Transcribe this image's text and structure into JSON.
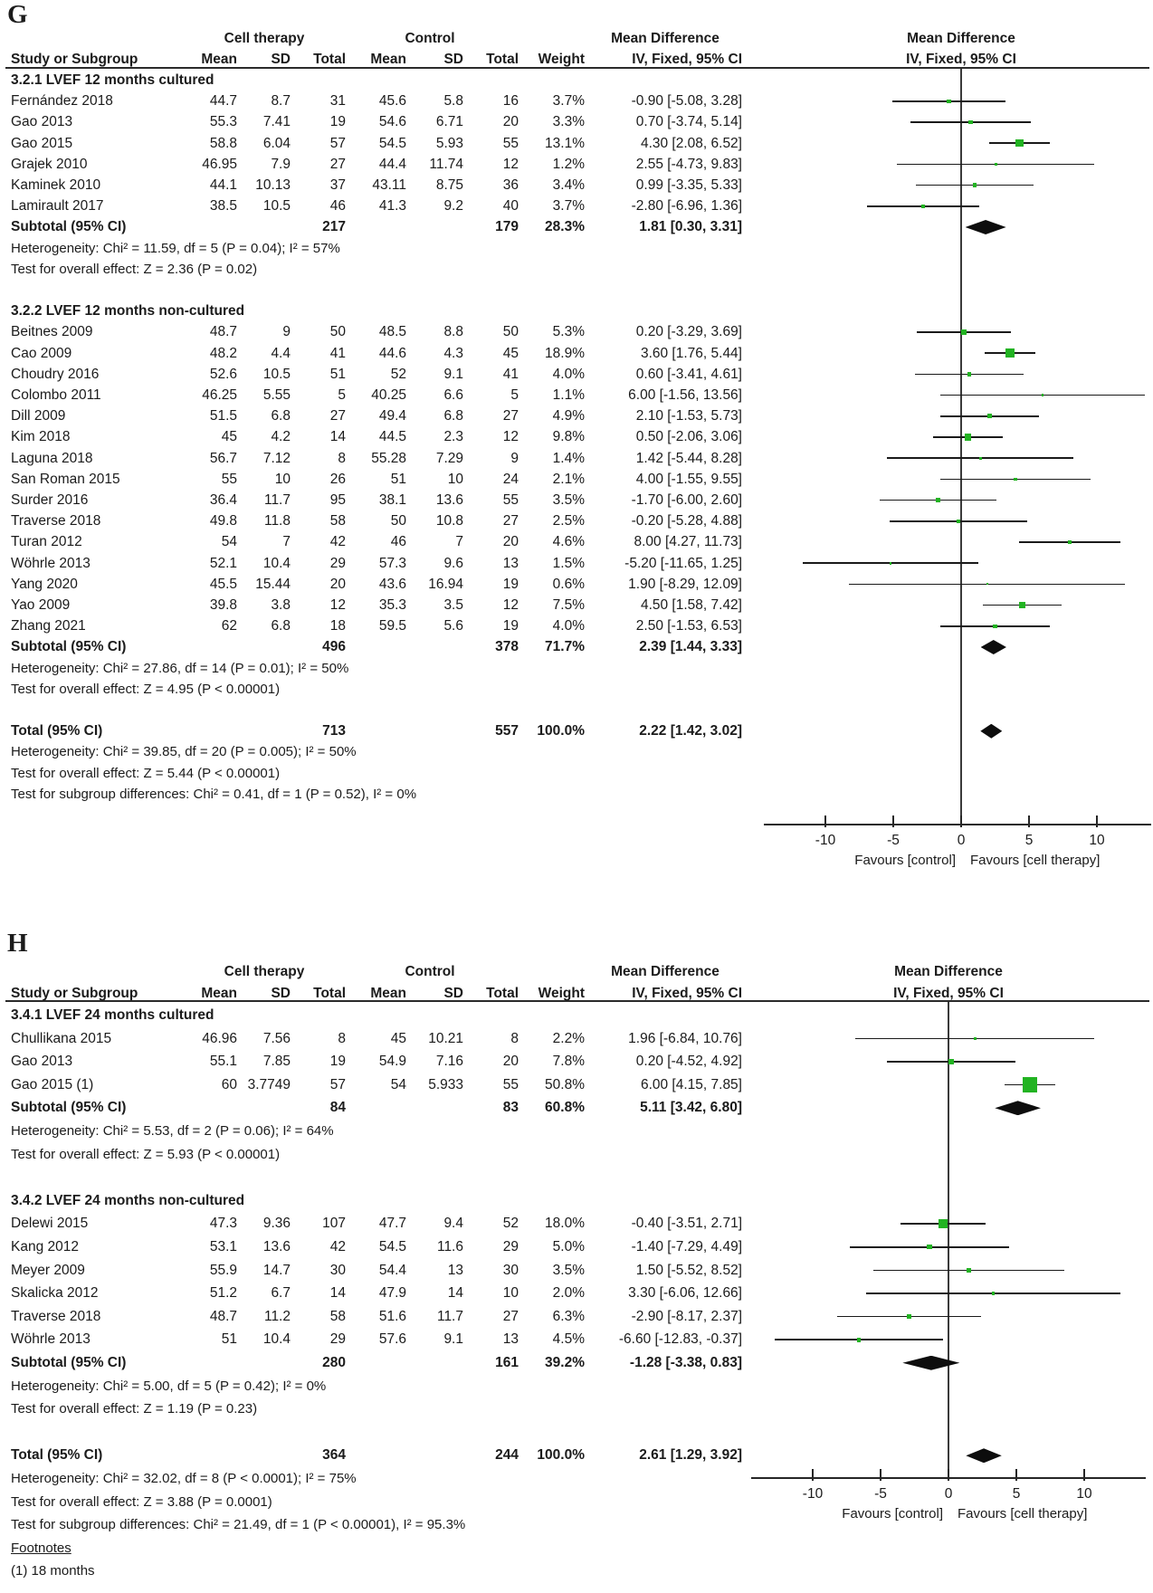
{
  "figure": {
    "marker_color": "#22b322",
    "diamond_color": "#0d0d0d",
    "line_color": "#1a1a1a"
  },
  "chart_data": [
    {
      "type": "forest",
      "panel_label": "G",
      "col_headers": {
        "study": "Study or Subgroup",
        "group1": "Cell therapy",
        "group2": "Control",
        "mean": "Mean",
        "sd": "SD",
        "total": "Total",
        "weight": "Weight",
        "effect": "Mean Difference",
        "method": "IV, Fixed, 95% CI"
      },
      "axis": {
        "ticks": [
          -10,
          -5,
          0,
          5,
          10
        ],
        "favours_left": "Favours [control]",
        "favours_right": "Favours [cell therapy]"
      },
      "rows": [
        {
          "kind": "section",
          "text": "3.2.1 LVEF 12 months cultured"
        },
        {
          "kind": "study",
          "study": "Fernández 2018",
          "mean1": "44.7",
          "sd1": "8.7",
          "total1": "31",
          "mean2": "45.6",
          "sd2": "5.8",
          "total2": "16",
          "weight": "3.7%",
          "ci_text": "-0.90 [-5.08, 3.28]"
        },
        {
          "kind": "study",
          "study": "Gao 2013",
          "mean1": "55.3",
          "sd1": "7.41",
          "total1": "19",
          "mean2": "54.6",
          "sd2": "6.71",
          "total2": "20",
          "weight": "3.3%",
          "ci_text": "0.70 [-3.74, 5.14]"
        },
        {
          "kind": "study",
          "study": "Gao 2015",
          "mean1": "58.8",
          "sd1": "6.04",
          "total1": "57",
          "mean2": "54.5",
          "sd2": "5.93",
          "total2": "55",
          "weight": "13.1%",
          "ci_text": "4.30 [2.08, 6.52]"
        },
        {
          "kind": "study",
          "study": "Grajek 2010",
          "mean1": "46.95",
          "sd1": "7.9",
          "total1": "27",
          "mean2": "44.4",
          "sd2": "11.74",
          "total2": "12",
          "weight": "1.2%",
          "ci_text": "2.55 [-4.73, 9.83]"
        },
        {
          "kind": "study",
          "study": "Kaminek 2010",
          "mean1": "44.1",
          "sd1": "10.13",
          "total1": "37",
          "mean2": "43.11",
          "sd2": "8.75",
          "total2": "36",
          "weight": "3.4%",
          "ci_text": "0.99 [-3.35, 5.33]"
        },
        {
          "kind": "study",
          "study": "Lamirault 2017",
          "mean1": "38.5",
          "sd1": "10.5",
          "total1": "46",
          "mean2": "41.3",
          "sd2": "9.2",
          "total2": "40",
          "weight": "3.7%",
          "ci_text": "-2.80 [-6.96, 1.36]"
        },
        {
          "kind": "subtotal",
          "study": "Subtotal (95% CI)",
          "total1": "217",
          "total2": "179",
          "weight": "28.3%",
          "ci_text": "1.81 [0.30, 3.31]"
        },
        {
          "kind": "text",
          "text": "Heterogeneity: Chi² = 11.59, df = 5 (P = 0.04); I² = 57%"
        },
        {
          "kind": "text",
          "text": "Test for overall effect: Z = 2.36 (P = 0.02)"
        },
        {
          "kind": "blank"
        },
        {
          "kind": "section",
          "text": "3.2.2 LVEF 12 months non-cultured"
        },
        {
          "kind": "study",
          "study": "Beitnes 2009",
          "mean1": "48.7",
          "sd1": "9",
          "total1": "50",
          "mean2": "48.5",
          "sd2": "8.8",
          "total2": "50",
          "weight": "5.3%",
          "ci_text": "0.20 [-3.29, 3.69]"
        },
        {
          "kind": "study",
          "study": "Cao 2009",
          "mean1": "48.2",
          "sd1": "4.4",
          "total1": "41",
          "mean2": "44.6",
          "sd2": "4.3",
          "total2": "45",
          "weight": "18.9%",
          "ci_text": "3.60 [1.76, 5.44]"
        },
        {
          "kind": "study",
          "study": "Choudry 2016",
          "mean1": "52.6",
          "sd1": "10.5",
          "total1": "51",
          "mean2": "52",
          "sd2": "9.1",
          "total2": "41",
          "weight": "4.0%",
          "ci_text": "0.60 [-3.41, 4.61]"
        },
        {
          "kind": "study",
          "study": "Colombo 2011",
          "mean1": "46.25",
          "sd1": "5.55",
          "total1": "5",
          "mean2": "40.25",
          "sd2": "6.6",
          "total2": "5",
          "weight": "1.1%",
          "ci_text": "6.00 [-1.56, 13.56]"
        },
        {
          "kind": "study",
          "study": "Dill 2009",
          "mean1": "51.5",
          "sd1": "6.8",
          "total1": "27",
          "mean2": "49.4",
          "sd2": "6.8",
          "total2": "27",
          "weight": "4.9%",
          "ci_text": "2.10 [-1.53, 5.73]"
        },
        {
          "kind": "study",
          "study": "Kim 2018",
          "mean1": "45",
          "sd1": "4.2",
          "total1": "14",
          "mean2": "44.5",
          "sd2": "2.3",
          "total2": "12",
          "weight": "9.8%",
          "ci_text": "0.50 [-2.06, 3.06]"
        },
        {
          "kind": "study",
          "study": "Laguna 2018",
          "mean1": "56.7",
          "sd1": "7.12",
          "total1": "8",
          "mean2": "55.28",
          "sd2": "7.29",
          "total2": "9",
          "weight": "1.4%",
          "ci_text": "1.42 [-5.44, 8.28]"
        },
        {
          "kind": "study",
          "study": "San Roman 2015",
          "mean1": "55",
          "sd1": "10",
          "total1": "26",
          "mean2": "51",
          "sd2": "10",
          "total2": "24",
          "weight": "2.1%",
          "ci_text": "4.00 [-1.55, 9.55]"
        },
        {
          "kind": "study",
          "study": "Surder 2016",
          "mean1": "36.4",
          "sd1": "11.7",
          "total1": "95",
          "mean2": "38.1",
          "sd2": "13.6",
          "total2": "55",
          "weight": "3.5%",
          "ci_text": "-1.70 [-6.00, 2.60]"
        },
        {
          "kind": "study",
          "study": "Traverse 2018",
          "mean1": "49.8",
          "sd1": "11.8",
          "total1": "58",
          "mean2": "50",
          "sd2": "10.8",
          "total2": "27",
          "weight": "2.5%",
          "ci_text": "-0.20 [-5.28, 4.88]"
        },
        {
          "kind": "study",
          "study": "Turan 2012",
          "mean1": "54",
          "sd1": "7",
          "total1": "42",
          "mean2": "46",
          "sd2": "7",
          "total2": "20",
          "weight": "4.6%",
          "ci_text": "8.00 [4.27, 11.73]"
        },
        {
          "kind": "study",
          "study": "Wöhrle 2013",
          "mean1": "52.1",
          "sd1": "10.4",
          "total1": "29",
          "mean2": "57.3",
          "sd2": "9.6",
          "total2": "13",
          "weight": "1.5%",
          "ci_text": "-5.20 [-11.65, 1.25]"
        },
        {
          "kind": "study",
          "study": "Yang 2020",
          "mean1": "45.5",
          "sd1": "15.44",
          "total1": "20",
          "mean2": "43.6",
          "sd2": "16.94",
          "total2": "19",
          "weight": "0.6%",
          "ci_text": "1.90 [-8.29, 12.09]"
        },
        {
          "kind": "study",
          "study": "Yao 2009",
          "mean1": "39.8",
          "sd1": "3.8",
          "total1": "12",
          "mean2": "35.3",
          "sd2": "3.5",
          "total2": "12",
          "weight": "7.5%",
          "ci_text": "4.50 [1.58, 7.42]"
        },
        {
          "kind": "study",
          "study": "Zhang 2021",
          "mean1": "62",
          "sd1": "6.8",
          "total1": "18",
          "mean2": "59.5",
          "sd2": "5.6",
          "total2": "19",
          "weight": "4.0%",
          "ci_text": "2.50 [-1.53, 6.53]"
        },
        {
          "kind": "subtotal",
          "study": "Subtotal (95% CI)",
          "total1": "496",
          "total2": "378",
          "weight": "71.7%",
          "ci_text": "2.39 [1.44, 3.33]"
        },
        {
          "kind": "text",
          "text": "Heterogeneity: Chi² = 27.86, df = 14 (P = 0.01); I² = 50%"
        },
        {
          "kind": "text",
          "text": "Test for overall effect: Z = 4.95 (P < 0.00001)"
        },
        {
          "kind": "blank"
        },
        {
          "kind": "total",
          "study": "Total (95% CI)",
          "total1": "713",
          "total2": "557",
          "weight": "100.0%",
          "ci_text": "2.22 [1.42, 3.02]"
        },
        {
          "kind": "text",
          "text": "Heterogeneity: Chi² = 39.85, df = 20 (P = 0.005); I² = 50%"
        },
        {
          "kind": "text",
          "text": "Test for overall effect: Z = 5.44 (P < 0.00001)"
        },
        {
          "kind": "text",
          "text": "Test for subgroup differences: Chi² = 0.41, df = 1 (P = 0.52), I² = 0%"
        }
      ]
    },
    {
      "type": "forest",
      "panel_label": "H",
      "col_headers": {
        "study": "Study or Subgroup",
        "group1": "Cell therapy",
        "group2": "Control",
        "mean": "Mean",
        "sd": "SD",
        "total": "Total",
        "weight": "Weight",
        "effect": "Mean Difference",
        "method": "IV, Fixed, 95% CI"
      },
      "axis": {
        "ticks": [
          -10,
          -5,
          0,
          5,
          10
        ],
        "favours_left": "Favours [control]",
        "favours_right": "Favours [cell therapy]"
      },
      "rows": [
        {
          "kind": "section",
          "text": "3.4.1 LVEF 24 months cultured"
        },
        {
          "kind": "study",
          "study": "Chullikana 2015",
          "mean1": "46.96",
          "sd1": "7.56",
          "total1": "8",
          "mean2": "45",
          "sd2": "10.21",
          "total2": "8",
          "weight": "2.2%",
          "ci_text": "1.96 [-6.84, 10.76]"
        },
        {
          "kind": "study",
          "study": "Gao 2013",
          "mean1": "55.1",
          "sd1": "7.85",
          "total1": "19",
          "mean2": "54.9",
          "sd2": "7.16",
          "total2": "20",
          "weight": "7.8%",
          "ci_text": "0.20 [-4.52, 4.92]"
        },
        {
          "kind": "study",
          "study": "Gao 2015 (1)",
          "mean1": "60",
          "sd1": "3.7749",
          "total1": "57",
          "mean2": "54",
          "sd2": "5.933",
          "total2": "55",
          "weight": "50.8%",
          "ci_text": "6.00 [4.15, 7.85]"
        },
        {
          "kind": "subtotal",
          "study": "Subtotal (95% CI)",
          "total1": "84",
          "total2": "83",
          "weight": "60.8%",
          "ci_text": "5.11 [3.42, 6.80]"
        },
        {
          "kind": "text",
          "text": "Heterogeneity: Chi² = 5.53, df = 2 (P = 0.06); I² = 64%"
        },
        {
          "kind": "text",
          "text": "Test for overall effect: Z = 5.93 (P < 0.00001)"
        },
        {
          "kind": "blank"
        },
        {
          "kind": "section",
          "text": "3.4.2 LVEF 24 months non-cultured"
        },
        {
          "kind": "study",
          "study": "Delewi 2015",
          "mean1": "47.3",
          "sd1": "9.36",
          "total1": "107",
          "mean2": "47.7",
          "sd2": "9.4",
          "total2": "52",
          "weight": "18.0%",
          "ci_text": "-0.40 [-3.51, 2.71]"
        },
        {
          "kind": "study",
          "study": "Kang 2012",
          "mean1": "53.1",
          "sd1": "13.6",
          "total1": "42",
          "mean2": "54.5",
          "sd2": "11.6",
          "total2": "29",
          "weight": "5.0%",
          "ci_text": "-1.40 [-7.29, 4.49]"
        },
        {
          "kind": "study",
          "study": "Meyer 2009",
          "mean1": "55.9",
          "sd1": "14.7",
          "total1": "30",
          "mean2": "54.4",
          "sd2": "13",
          "total2": "30",
          "weight": "3.5%",
          "ci_text": "1.50 [-5.52, 8.52]"
        },
        {
          "kind": "study",
          "study": "Skalicka 2012",
          "mean1": "51.2",
          "sd1": "6.7",
          "total1": "14",
          "mean2": "47.9",
          "sd2": "14",
          "total2": "10",
          "weight": "2.0%",
          "ci_text": "3.30 [-6.06, 12.66]"
        },
        {
          "kind": "study",
          "study": "Traverse 2018",
          "mean1": "48.7",
          "sd1": "11.2",
          "total1": "58",
          "mean2": "51.6",
          "sd2": "11.7",
          "total2": "27",
          "weight": "6.3%",
          "ci_text": "-2.90 [-8.17, 2.37]"
        },
        {
          "kind": "study",
          "study": "Wöhrle 2013",
          "mean1": "51",
          "sd1": "10.4",
          "total1": "29",
          "mean2": "57.6",
          "sd2": "9.1",
          "total2": "13",
          "weight": "4.5%",
          "ci_text": "-6.60 [-12.83, -0.37]"
        },
        {
          "kind": "subtotal",
          "study": "Subtotal (95% CI)",
          "total1": "280",
          "total2": "161",
          "weight": "39.2%",
          "ci_text": "-1.28 [-3.38, 0.83]"
        },
        {
          "kind": "text",
          "text": "Heterogeneity: Chi² = 5.00, df = 5 (P = 0.42); I² = 0%"
        },
        {
          "kind": "text",
          "text": "Test for overall effect: Z = 1.19 (P = 0.23)"
        },
        {
          "kind": "blank"
        },
        {
          "kind": "total",
          "study": "Total (95% CI)",
          "total1": "364",
          "total2": "244",
          "weight": "100.0%",
          "ci_text": "2.61 [1.29, 3.92]"
        },
        {
          "kind": "text",
          "text": "Heterogeneity: Chi² = 32.02, df = 8 (P < 0.0001); I² = 75%"
        },
        {
          "kind": "text",
          "text": "Test for overall effect: Z = 3.88 (P = 0.0001)"
        },
        {
          "kind": "text",
          "text": "Test for subgroup differences: Chi² = 21.49, df = 1 (P < 0.00001), I² = 95.3%"
        },
        {
          "kind": "text",
          "text": "Footnotes",
          "underline": true
        },
        {
          "kind": "text",
          "text": "(1) 18 months"
        }
      ]
    }
  ]
}
